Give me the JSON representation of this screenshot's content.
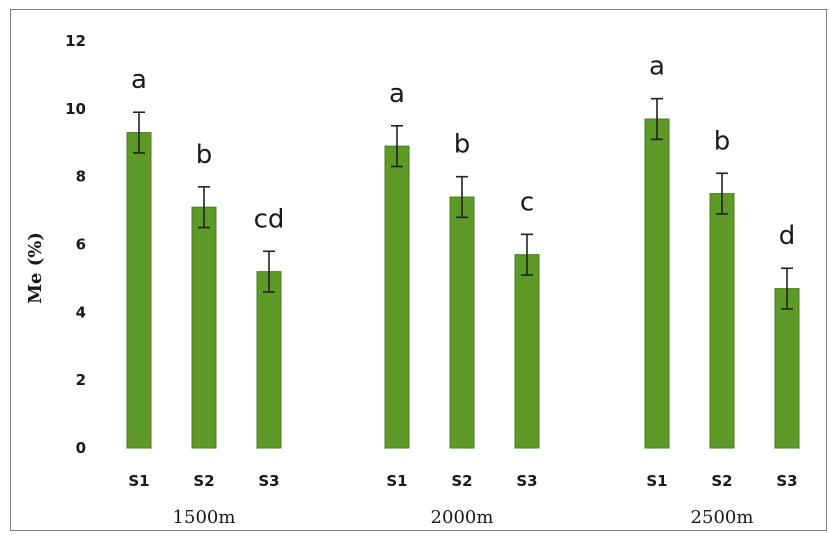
{
  "chart_data": {
    "type": "bar",
    "ylabel": "Me (%)",
    "ylim": [
      0,
      12
    ],
    "yticks": [
      "0",
      "2",
      "4",
      "6",
      "8",
      "10",
      "12"
    ],
    "grid": false,
    "bar_color": "#5e9a27",
    "groups": [
      {
        "label": "1500m",
        "bars": [
          {
            "category": "S1",
            "value": 9.3,
            "error": 0.6,
            "significance": "a"
          },
          {
            "category": "S2",
            "value": 7.1,
            "error": 0.6,
            "significance": "b"
          },
          {
            "category": "S3",
            "value": 5.2,
            "error": 0.6,
            "significance": "cd"
          }
        ]
      },
      {
        "label": "2000m",
        "bars": [
          {
            "category": "S1",
            "value": 8.9,
            "error": 0.6,
            "significance": "a"
          },
          {
            "category": "S2",
            "value": 7.4,
            "error": 0.6,
            "significance": "b"
          },
          {
            "category": "S3",
            "value": 5.7,
            "error": 0.6,
            "significance": "c"
          }
        ]
      },
      {
        "label": "2500m",
        "bars": [
          {
            "category": "S1",
            "value": 9.7,
            "error": 0.6,
            "significance": "a"
          },
          {
            "category": "S2",
            "value": 7.5,
            "error": 0.6,
            "significance": "b"
          },
          {
            "category": "S3",
            "value": 4.7,
            "error": 0.6,
            "significance": "d"
          }
        ]
      }
    ]
  }
}
